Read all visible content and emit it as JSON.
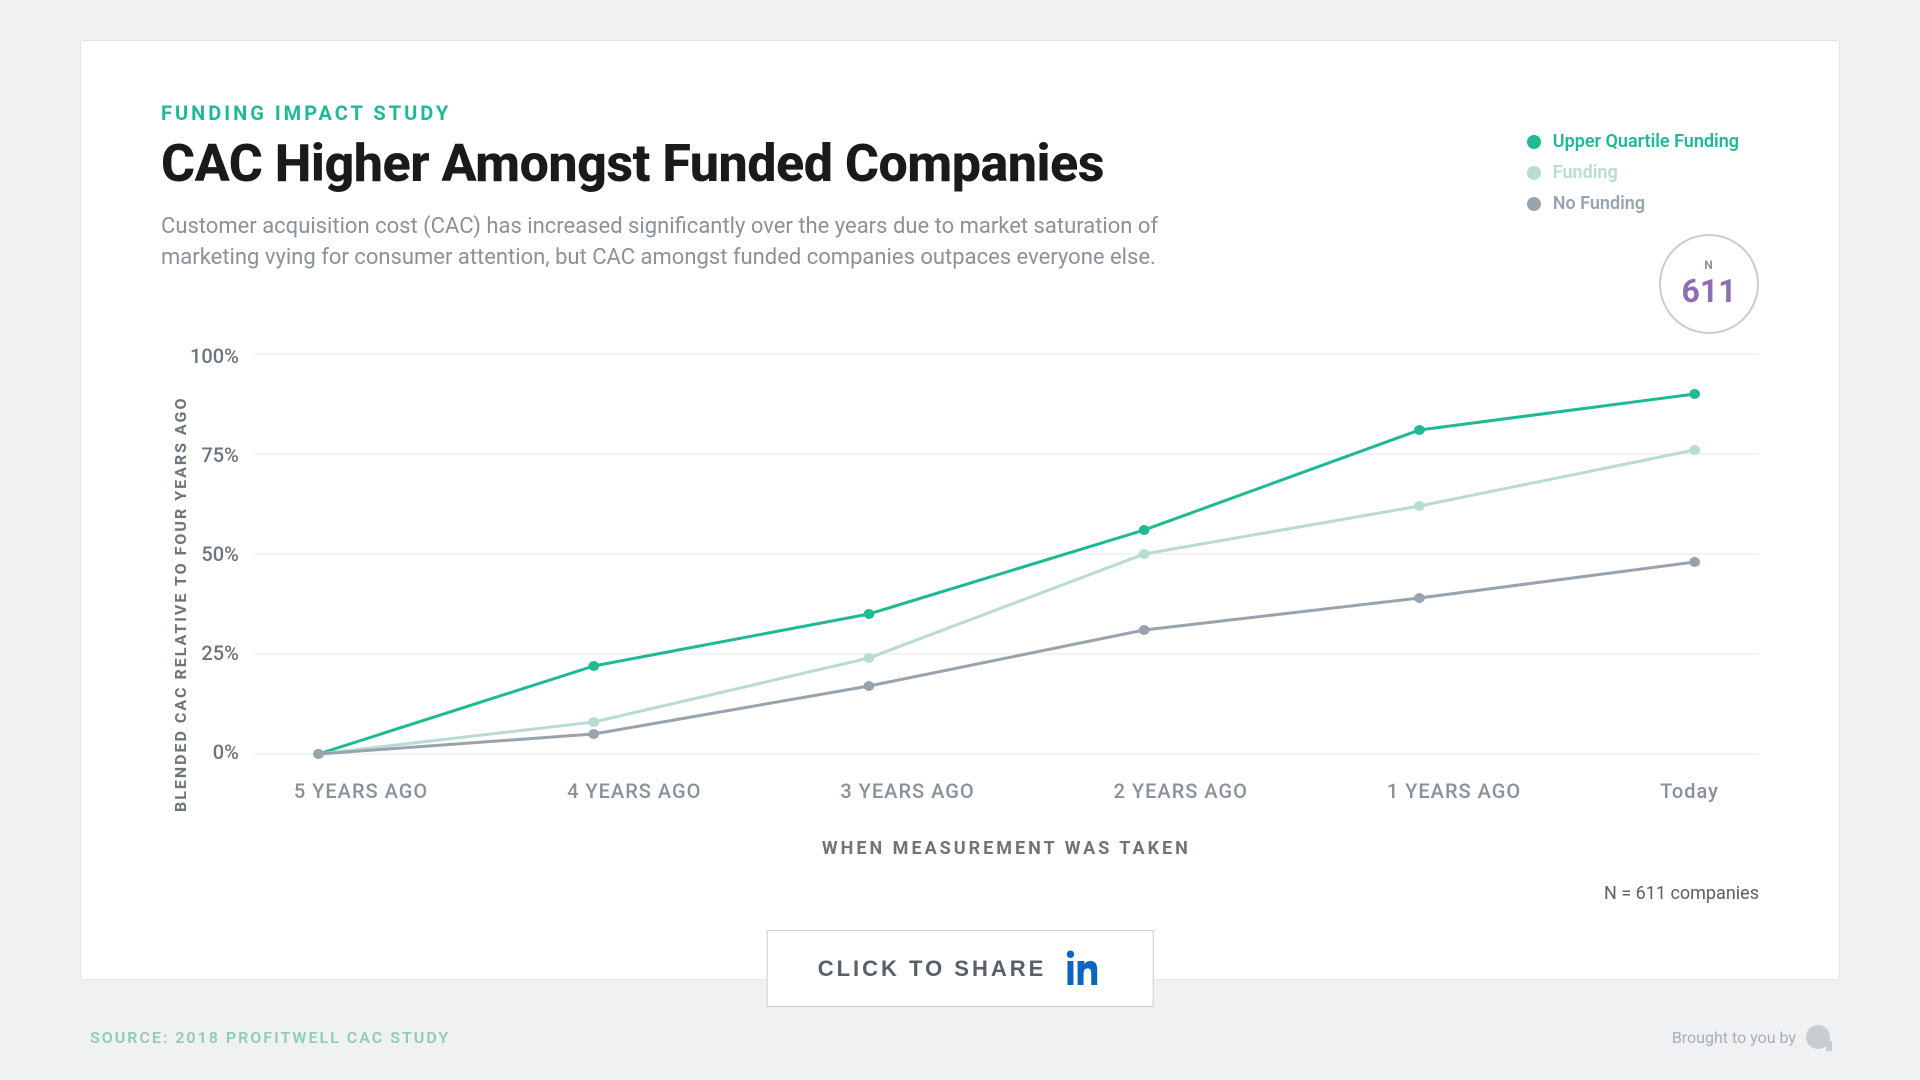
{
  "page": {
    "background_color": "#f0f1f2",
    "card_background": "#ffffff",
    "card_border": "#e2e4e6"
  },
  "header": {
    "eyebrow": "FUNDING IMPACT STUDY",
    "eyebrow_color": "#1fb993",
    "title": "CAC Higher Amongst Funded Companies",
    "title_color": "#1a1a1a",
    "title_fontsize": 52,
    "subtitle": "Customer acquisition cost (CAC) has increased significantly over the years due to market saturation of marketing vying for consumer attention, but CAC amongst funded companies outpaces everyone else.",
    "subtitle_color": "#8a9199",
    "subtitle_fontsize": 22
  },
  "legend": {
    "items": [
      {
        "label": "Upper Quartile Funding",
        "color": "#1fb993"
      },
      {
        "label": "Funding",
        "color": "#b8dcd1"
      },
      {
        "label": "No Funding",
        "color": "#98a3ad"
      }
    ]
  },
  "n_badge": {
    "label": "N",
    "value": "611",
    "value_color": "#8b6fb0",
    "border_color": "#c9cdd1"
  },
  "chart": {
    "type": "line",
    "y_axis_label": "BLENDED CAC RELATIVE TO FOUR YEARS AGO",
    "x_axis_label": "WHEN MEASUREMENT WAS TAKEN",
    "axis_label_color": "#6d747c",
    "tick_color": "#8a9199",
    "grid_color": "#e5e7e9",
    "ylim": [
      0,
      100
    ],
    "y_ticks": [
      "100%",
      "75%",
      "50%",
      "25%",
      "0%"
    ],
    "x_categories": [
      "5 YEARS AGO",
      "4 YEARS AGO",
      "3 YEARS AGO",
      "2 YEARS AGO",
      "1 YEARS AGO",
      "Today"
    ],
    "marker_radius": 5,
    "line_width": 3,
    "series": [
      {
        "name": "Upper Quartile Funding",
        "color": "#1fb993",
        "values": [
          0,
          22,
          35,
          56,
          81,
          90
        ]
      },
      {
        "name": "Funding",
        "color": "#b8dcd1",
        "values": [
          0,
          8,
          24,
          50,
          62,
          76
        ]
      },
      {
        "name": "No Funding",
        "color": "#98a3ad",
        "values": [
          0,
          5,
          17,
          31,
          39,
          48
        ]
      }
    ]
  },
  "n_note": "N = 611 companies",
  "share": {
    "label": "CLICK TO SHARE",
    "icon_name": "linkedin-icon",
    "icon_color": "#0a66c2"
  },
  "footer": {
    "source": "SOURCE: 2018 PROFITWELL  CAC STUDY",
    "source_color": "#8fcbb9",
    "brought_by": "Brought to you by",
    "brought_by_color": "#a8aeb5"
  }
}
